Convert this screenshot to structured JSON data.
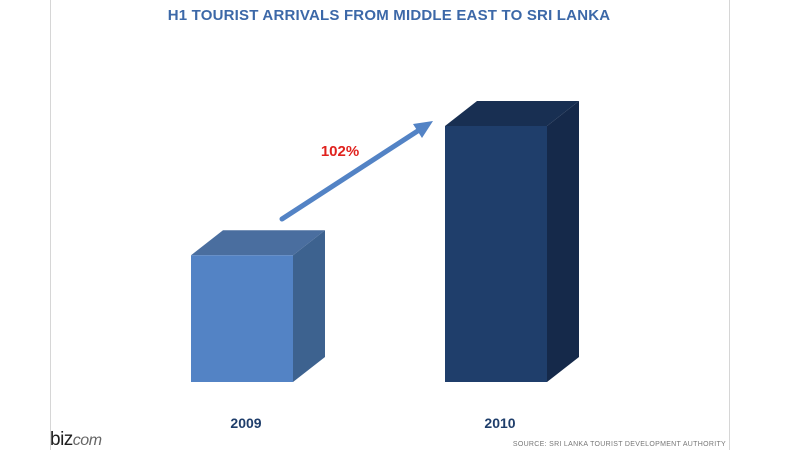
{
  "chart_data": {
    "type": "bar",
    "title": "H1 TOURIST ARRIVALS FROM MIDDLE EAST TO  SRI LANKA",
    "categories": [
      "2009",
      "2010"
    ],
    "values": [
      1.0,
      2.02
    ],
    "annotation": "102%",
    "colors": {
      "bar_2009": "#5383c5",
      "bar_2009_side": "#3d628f",
      "bar_2009_top": "#4a6e9f",
      "bar_2010": "#1f3e6b",
      "bar_2010_side": "#15294a",
      "bar_2010_top": "#182f52",
      "arrow": "#5383c5",
      "annotation": "#e0221e",
      "title": "#3c68a8"
    }
  },
  "footer": {
    "logo_main": "biz",
    "logo_sub": "com",
    "source": "SOURCE: SRI LANKA TOURIST DEVELOPMENT AUTHORITY"
  }
}
